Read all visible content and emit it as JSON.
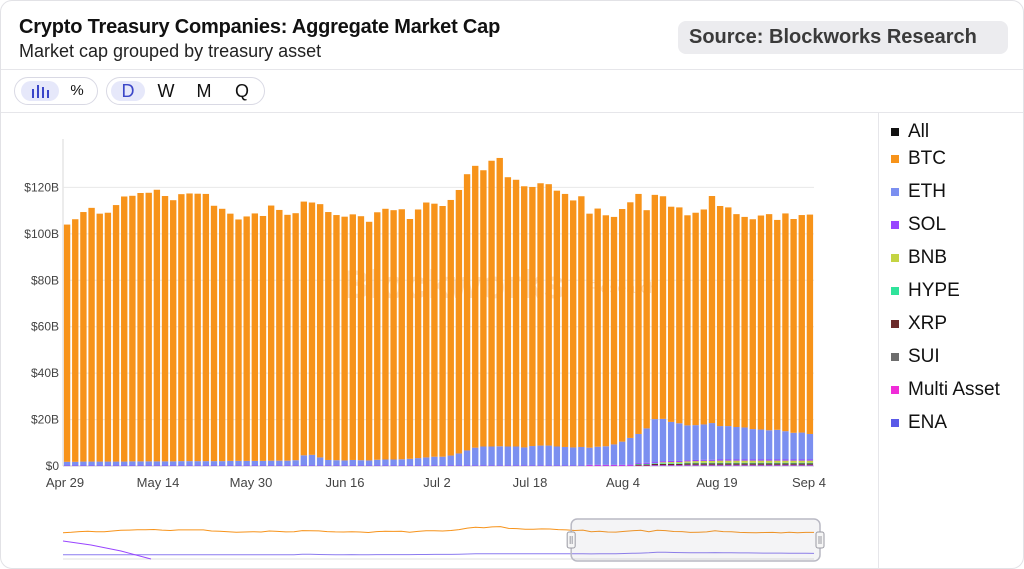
{
  "header": {
    "title": "Crypto Treasury Companies: Aggregate Market Cap",
    "subtitle": "Market cap grouped by treasury asset",
    "source": "Source: Blockworks Research"
  },
  "toolbar": {
    "view_group": [
      {
        "icon": "bar-chart-icon",
        "glyph": "▏│┃│",
        "active": true
      },
      {
        "icon": "percent-icon",
        "glyph": "%",
        "active": false
      }
    ],
    "period_group": [
      {
        "label": "D",
        "active": true
      },
      {
        "label": "W",
        "active": false
      },
      {
        "label": "M",
        "active": false
      },
      {
        "label": "Q",
        "active": false
      }
    ]
  },
  "watermark": {
    "brand": "Blockworks",
    "suffix": "Research"
  },
  "legend": [
    {
      "label": "All",
      "color": "#111111"
    },
    {
      "label": "BTC",
      "color": "#f7931a"
    },
    {
      "label": "ETH",
      "color": "#7b8ff0"
    },
    {
      "label": "SOL",
      "color": "#9945ff"
    },
    {
      "label": "BNB",
      "color": "#c4d442"
    },
    {
      "label": "HYPE",
      "color": "#2fe39b"
    },
    {
      "label": "XRP",
      "color": "#6b2a2a"
    },
    {
      "label": "SUI",
      "color": "#6d6d6d"
    },
    {
      "label": "Multi Asset",
      "color": "#f02cd8"
    },
    {
      "label": "ENA",
      "color": "#5a5ae8"
    }
  ],
  "chart_data": {
    "type": "bar",
    "stacked": true,
    "y_ticks": [
      "$0",
      "$20B",
      "$40B",
      "$60B",
      "$80B",
      "$100B",
      "$120B"
    ],
    "ylim": [
      0,
      140
    ],
    "x_ticks": [
      "Apr 29",
      "May 14",
      "May 30",
      "Jun 16",
      "Jul 2",
      "Jul 18",
      "Aug 4",
      "Aug 19",
      "Sep 4"
    ],
    "grid": true,
    "legend_placement": "right",
    "series": [
      {
        "name": "BTC",
        "color": "#f7931a",
        "values": [
          102.2,
          104.5,
          107.5,
          109.3,
          106.8,
          107.2,
          110.5,
          114.2,
          114.4,
          115.6,
          115.7,
          117.0,
          114.3,
          112.5,
          115.0,
          115.3,
          115.2,
          115.1,
          110.0,
          108.7,
          106.5,
          104.0,
          105.3,
          106.6,
          105.5,
          109.9,
          108.0,
          105.9,
          106.4,
          109.3,
          108.7,
          109.1,
          106.8,
          105.6,
          105.0,
          105.8,
          105.1,
          102.8,
          106.6,
          108.0,
          107.4,
          107.7,
          103.3,
          107.1,
          109.8,
          109.0,
          108.0,
          110.1,
          113.5,
          119.0,
          121.4,
          119.0,
          123.1,
          124.2,
          116.0,
          114.9,
          112.5,
          111.6,
          113.0,
          112.6,
          110.2,
          109.0,
          106.4,
          108.0,
          100.8,
          102.6,
          99.5,
          98.0,
          100.2,
          101.5,
          103.4,
          94.0,
          96.6,
          95.9,
          92.7,
          93.0,
          90.5,
          91.5,
          92.6,
          97.8,
          94.8,
          94.2,
          91.7,
          90.7,
          90.4,
          92.2,
          93.1,
          90.4,
          93.8,
          92.1,
          93.7,
          94.5
        ]
      },
      {
        "name": "ETH",
        "color": "#7b8ff0",
        "values": [
          1.6,
          1.6,
          1.7,
          1.7,
          1.7,
          1.7,
          1.7,
          1.7,
          1.8,
          1.8,
          1.8,
          1.8,
          1.8,
          1.8,
          1.9,
          1.9,
          1.9,
          1.9,
          1.9,
          1.9,
          2.0,
          2.0,
          2.0,
          2.0,
          2.0,
          2.1,
          2.1,
          2.1,
          2.3,
          4.4,
          4.6,
          3.5,
          2.4,
          2.3,
          2.2,
          2.4,
          2.3,
          2.2,
          2.5,
          2.6,
          2.6,
          2.7,
          2.9,
          3.2,
          3.5,
          3.8,
          3.8,
          4.3,
          5.2,
          6.5,
          7.7,
          8.2,
          8.2,
          8.3,
          8.2,
          8.2,
          7.8,
          8.4,
          8.6,
          8.6,
          8.2,
          8.0,
          7.8,
          8.0,
          7.4,
          7.8,
          8.0,
          8.8,
          10.0,
          11.5,
          12.5,
          14.8,
          18.5,
          18.2,
          16.8,
          16.2,
          15.0,
          15.0,
          15.2,
          15.8,
          14.4,
          14.4,
          14.0,
          13.8,
          13.1,
          12.9,
          12.6,
          12.8,
          12.2,
          11.5,
          11.6,
          11.0
        ]
      },
      {
        "name": "SOL",
        "color": "#9945ff",
        "values": [
          0.2,
          0.2,
          0.2,
          0.2,
          0.2,
          0.2,
          0.2,
          0.2,
          0.2,
          0.2,
          0.2,
          0.2,
          0.2,
          0.2,
          0.2,
          0.2,
          0.2,
          0.2,
          0.2,
          0.2,
          0.2,
          0.2,
          0.2,
          0.2,
          0.2,
          0.2,
          0.2,
          0.2,
          0.2,
          0.2,
          0.2,
          0.2,
          0.2,
          0.2,
          0.2,
          0.2,
          0.2,
          0.2,
          0.2,
          0.2,
          0.2,
          0.2,
          0.2,
          0.2,
          0.2,
          0.2,
          0.2,
          0.2,
          0.2,
          0.2,
          0.2,
          0.2,
          0.2,
          0.2,
          0.2,
          0.2,
          0.2,
          0.2,
          0.2,
          0.2,
          0.2,
          0.2,
          0.2,
          0.2,
          0.3,
          0.3,
          0.3,
          0.3,
          0.3,
          0.4,
          0.4,
          0.5,
          0.5,
          0.5,
          0.5,
          0.5,
          0.5,
          0.5,
          0.5,
          0.5,
          0.5,
          0.5,
          0.5,
          0.5,
          0.5,
          0.5,
          0.5,
          0.5,
          0.5,
          0.5,
          0.5,
          0.5
        ]
      },
      {
        "name": "BNB",
        "color": "#c4d442",
        "values": [
          0,
          0,
          0,
          0,
          0,
          0,
          0,
          0,
          0,
          0,
          0,
          0,
          0,
          0,
          0,
          0,
          0,
          0,
          0,
          0,
          0,
          0,
          0,
          0,
          0,
          0,
          0,
          0,
          0,
          0,
          0,
          0,
          0,
          0,
          0,
          0,
          0,
          0,
          0,
          0,
          0,
          0,
          0,
          0,
          0,
          0,
          0,
          0,
          0,
          0,
          0,
          0,
          0,
          0,
          0,
          0,
          0,
          0,
          0,
          0,
          0,
          0,
          0,
          0,
          0,
          0,
          0,
          0,
          0,
          0,
          0,
          0,
          0,
          0.4,
          0.5,
          0.5,
          0.6,
          0.7,
          0.8,
          0.8,
          0.9,
          0.9,
          0.9,
          0.9,
          0.9,
          0.9,
          0.9,
          0.9,
          0.9,
          0.9,
          0.9,
          0.9
        ]
      },
      {
        "name": "HYPE",
        "color": "#2fe39b",
        "values": [
          0,
          0,
          0,
          0,
          0,
          0,
          0,
          0,
          0,
          0,
          0,
          0,
          0,
          0,
          0,
          0,
          0,
          0,
          0,
          0,
          0,
          0,
          0,
          0,
          0,
          0,
          0,
          0,
          0,
          0,
          0,
          0,
          0,
          0,
          0,
          0,
          0,
          0,
          0,
          0,
          0,
          0,
          0,
          0,
          0,
          0,
          0,
          0,
          0,
          0,
          0,
          0,
          0,
          0,
          0,
          0,
          0,
          0,
          0,
          0,
          0,
          0,
          0,
          0,
          0,
          0,
          0,
          0,
          0,
          0,
          0.3,
          0.3,
          0.3,
          0.3,
          0.3,
          0.3,
          0.3,
          0.3,
          0.3,
          0.3,
          0.3,
          0.3,
          0.3,
          0.3,
          0.3,
          0.3,
          0.3,
          0.3,
          0.3,
          0.3,
          0.3,
          0.3
        ]
      },
      {
        "name": "XRP",
        "color": "#6b2a2a",
        "values": [
          0,
          0,
          0,
          0,
          0,
          0,
          0,
          0,
          0,
          0,
          0,
          0,
          0,
          0,
          0,
          0,
          0,
          0,
          0,
          0,
          0,
          0,
          0,
          0,
          0,
          0,
          0,
          0,
          0,
          0,
          0,
          0,
          0,
          0,
          0,
          0,
          0,
          0,
          0,
          0,
          0,
          0,
          0,
          0,
          0,
          0,
          0,
          0,
          0,
          0,
          0,
          0,
          0,
          0,
          0,
          0,
          0,
          0,
          0,
          0,
          0,
          0,
          0,
          0,
          0,
          0,
          0,
          0,
          0,
          0,
          0.4,
          0.4,
          0.5,
          0.5,
          0.5,
          0.5,
          0.5,
          0.5,
          0.5,
          0.5,
          0.5,
          0.5,
          0.5,
          0.5,
          0.5,
          0.5,
          0.5,
          0.5,
          0.5,
          0.5,
          0.5,
          0.5
        ]
      },
      {
        "name": "SUI",
        "color": "#6d6d6d",
        "values": [
          0,
          0,
          0,
          0,
          0,
          0,
          0,
          0,
          0,
          0,
          0,
          0,
          0,
          0,
          0,
          0,
          0,
          0,
          0,
          0,
          0,
          0,
          0,
          0,
          0,
          0,
          0,
          0,
          0,
          0,
          0,
          0,
          0,
          0,
          0,
          0,
          0,
          0,
          0,
          0,
          0,
          0,
          0,
          0,
          0,
          0,
          0,
          0,
          0,
          0,
          0,
          0,
          0,
          0,
          0,
          0,
          0,
          0,
          0,
          0,
          0,
          0,
          0,
          0,
          0,
          0,
          0,
          0,
          0,
          0,
          0,
          0,
          0,
          0,
          0,
          0,
          0.2,
          0.2,
          0.2,
          0.2,
          0.2,
          0.2,
          0.2,
          0.2,
          0.2,
          0.2,
          0.2,
          0.2,
          0.2,
          0.2,
          0.2,
          0.2
        ]
      },
      {
        "name": "Multi Asset",
        "color": "#f02cd8",
        "values": [
          0,
          0,
          0,
          0,
          0,
          0,
          0,
          0,
          0,
          0,
          0,
          0,
          0,
          0,
          0,
          0,
          0,
          0,
          0,
          0,
          0,
          0,
          0,
          0,
          0,
          0,
          0,
          0,
          0,
          0,
          0,
          0,
          0,
          0,
          0,
          0,
          0,
          0,
          0,
          0,
          0,
          0,
          0,
          0,
          0,
          0,
          0,
          0,
          0,
          0,
          0,
          0,
          0,
          0,
          0,
          0,
          0,
          0,
          0,
          0,
          0,
          0,
          0,
          0,
          0.2,
          0.2,
          0.2,
          0.2,
          0.2,
          0.2,
          0.2,
          0.2,
          0.2,
          0.2,
          0.2,
          0.2,
          0.2,
          0.2,
          0.2,
          0.2,
          0.2,
          0.2,
          0.2,
          0.2,
          0.2,
          0.2,
          0.2,
          0.2,
          0.2,
          0.2,
          0.2,
          0.2
        ]
      },
      {
        "name": "ENA",
        "color": "#5a5ae8",
        "values": [
          0,
          0,
          0,
          0,
          0,
          0,
          0,
          0,
          0,
          0,
          0,
          0,
          0,
          0,
          0,
          0,
          0,
          0,
          0,
          0,
          0,
          0,
          0,
          0,
          0,
          0,
          0,
          0,
          0,
          0,
          0,
          0,
          0,
          0,
          0,
          0,
          0,
          0,
          0,
          0,
          0,
          0,
          0,
          0,
          0,
          0,
          0,
          0,
          0,
          0,
          0,
          0,
          0,
          0,
          0,
          0,
          0,
          0,
          0,
          0,
          0,
          0,
          0,
          0,
          0,
          0,
          0,
          0,
          0,
          0,
          0,
          0,
          0.2,
          0.2,
          0.2,
          0.2,
          0.2,
          0.2,
          0.2,
          0.2,
          0.2,
          0.2,
          0.2,
          0.2,
          0.2,
          0.2,
          0.2,
          0.2,
          0.2,
          0.2,
          0.2,
          0.2
        ]
      }
    ]
  },
  "navigator": {
    "lines": [
      {
        "name": "BTC",
        "color": "#f7931a"
      },
      {
        "name": "ETH",
        "color": "#9945ff"
      }
    ],
    "selected_range": {
      "from_index": 64,
      "to_index": 91
    }
  }
}
